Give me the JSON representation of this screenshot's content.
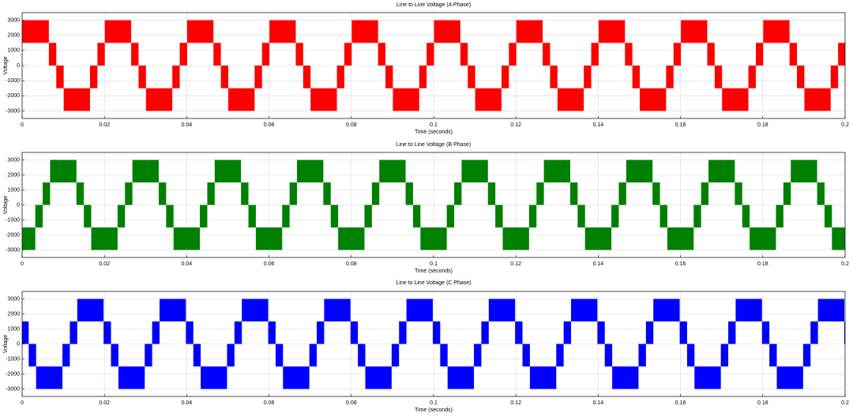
{
  "chart_data": [
    {
      "type": "band",
      "title": "Line to Line Voltage (A Phase)",
      "xlabel": "Time (seconds)",
      "ylabel": "Voltage",
      "xlim": [
        0,
        0.2
      ],
      "xticks": [
        0,
        0.02,
        0.04,
        0.06,
        0.08,
        0.1,
        0.12,
        0.14,
        0.16,
        0.18,
        0.2
      ],
      "ylim": [
        -3500,
        3500
      ],
      "yticks": [
        -3000,
        -2000,
        -1000,
        0,
        1000,
        2000,
        3000
      ],
      "grid": true,
      "color": "#ff0000",
      "edges": [
        0,
        0.0065,
        0.0083,
        0.0101,
        0.0165,
        0.0183,
        0.0201,
        0.0265,
        0.0283,
        0.0301,
        0.0365,
        0.0383,
        0.0401,
        0.0465,
        0.0483,
        0.0501,
        0.0565,
        0.0583,
        0.0601,
        0.0665,
        0.0683,
        0.0701,
        0.0765,
        0.0783,
        0.0801,
        0.0865,
        0.0883,
        0.0901,
        0.0965,
        0.0983,
        0.1001,
        0.1065,
        0.1083,
        0.1101,
        0.1165,
        0.1183,
        0.1201,
        0.1265,
        0.1283,
        0.1301,
        0.1365,
        0.1383,
        0.1401,
        0.1465,
        0.1483,
        0.1501,
        0.1565,
        0.1583,
        0.1601,
        0.1665,
        0.1683,
        0.1701,
        0.1765,
        0.1783,
        0.1801,
        0.1865,
        0.1883,
        0.1901,
        0.1965,
        0.1983,
        0.2
      ],
      "low": [
        1500,
        0,
        -1500,
        -3000,
        -1500,
        0,
        1500,
        0,
        -1500,
        -3000,
        -1500,
        0,
        1500,
        0,
        -1500,
        -3000,
        -1500,
        0,
        1500,
        0,
        -1500,
        -3000,
        -1500,
        0,
        1500,
        0,
        -1500,
        -3000,
        -1500,
        0,
        1500,
        0,
        -1500,
        -3000,
        -1500,
        0,
        1500,
        0,
        -1500,
        -3000,
        -1500,
        0,
        1500,
        0,
        -1500,
        -3000,
        -1500,
        0,
        1500,
        0,
        -1500,
        -3000,
        -1500,
        0,
        1500,
        0,
        -1500,
        -3000,
        -1500,
        0
      ],
      "high": [
        3000,
        1500,
        0,
        -1500,
        0,
        1500,
        3000,
        1500,
        0,
        -1500,
        0,
        1500,
        3000,
        1500,
        0,
        -1500,
        0,
        1500,
        3000,
        1500,
        0,
        -1500,
        0,
        1500,
        3000,
        1500,
        0,
        -1500,
        0,
        1500,
        3000,
        1500,
        0,
        -1500,
        0,
        1500,
        3000,
        1500,
        0,
        -1500,
        0,
        1500,
        3000,
        1500,
        0,
        -1500,
        0,
        1500,
        3000,
        1500,
        0,
        -1500,
        0,
        1500,
        3000,
        1500,
        0,
        -1500,
        0,
        1500
      ]
    },
    {
      "type": "band",
      "title": "Line to Line Voltage (B Phase)",
      "xlabel": "Time (seconds)",
      "ylabel": "Voltage",
      "xlim": [
        0,
        0.2
      ],
      "xticks": [
        0,
        0.02,
        0.04,
        0.06,
        0.08,
        0.1,
        0.12,
        0.14,
        0.16,
        0.18,
        0.2
      ],
      "ylim": [
        -3500,
        3500
      ],
      "yticks": [
        -3000,
        -2000,
        -1000,
        0,
        1000,
        2000,
        3000
      ],
      "grid": true,
      "color": "#008000",
      "edges": [
        0,
        0.0032,
        0.005,
        0.0068,
        0.0132,
        0.015,
        0.0168,
        0.0232,
        0.025,
        0.0268,
        0.0332,
        0.035,
        0.0368,
        0.0432,
        0.045,
        0.0468,
        0.0532,
        0.055,
        0.0568,
        0.0632,
        0.065,
        0.0668,
        0.0732,
        0.075,
        0.0768,
        0.0832,
        0.085,
        0.0868,
        0.0932,
        0.095,
        0.0968,
        0.1032,
        0.105,
        0.1068,
        0.1132,
        0.115,
        0.1168,
        0.1232,
        0.125,
        0.1268,
        0.1332,
        0.135,
        0.1368,
        0.1432,
        0.145,
        0.1468,
        0.1532,
        0.155,
        0.1568,
        0.1632,
        0.165,
        0.1668,
        0.1732,
        0.175,
        0.1768,
        0.1832,
        0.185,
        0.1868,
        0.1932,
        0.195,
        0.1968,
        0.2
      ],
      "low": [
        -3000,
        -1500,
        0,
        1500,
        0,
        -1500,
        -3000,
        -1500,
        0,
        1500,
        0,
        -1500,
        -3000,
        -1500,
        0,
        1500,
        0,
        -1500,
        -3000,
        -1500,
        0,
        1500,
        0,
        -1500,
        -3000,
        -1500,
        0,
        1500,
        0,
        -1500,
        -3000,
        -1500,
        0,
        1500,
        0,
        -1500,
        -3000,
        -1500,
        0,
        1500,
        0,
        -1500,
        -3000,
        -1500,
        0,
        1500,
        0,
        -1500,
        -3000,
        -1500,
        0,
        1500,
        0,
        -1500,
        -3000,
        -1500,
        0,
        1500,
        0,
        -1500,
        -3000
      ],
      "high": [
        -1500,
        0,
        1500,
        3000,
        1500,
        0,
        -1500,
        0,
        1500,
        3000,
        1500,
        0,
        -1500,
        0,
        1500,
        3000,
        1500,
        0,
        -1500,
        0,
        1500,
        3000,
        1500,
        0,
        -1500,
        0,
        1500,
        3000,
        1500,
        0,
        -1500,
        0,
        1500,
        3000,
        1500,
        0,
        -1500,
        0,
        1500,
        3000,
        1500,
        0,
        -1500,
        0,
        1500,
        3000,
        1500,
        0,
        -1500,
        0,
        1500,
        3000,
        1500,
        0,
        -1500,
        0,
        1500,
        3000,
        1500,
        0,
        -1500
      ]
    },
    {
      "type": "band",
      "title": "Line to Line Voltage (C Phase)",
      "xlabel": "Time (seconds)",
      "ylabel": "Voltage",
      "xlim": [
        0,
        0.2
      ],
      "xticks": [
        0,
        0.02,
        0.04,
        0.06,
        0.08,
        0.1,
        0.12,
        0.14,
        0.16,
        0.18,
        0.2
      ],
      "ylim": [
        -3500,
        3500
      ],
      "yticks": [
        -3000,
        -2000,
        -1000,
        0,
        1000,
        2000,
        3000
      ],
      "grid": true,
      "color": "#0000ff",
      "edges": [
        0,
        0.0016,
        0.0034,
        0.0098,
        0.0116,
        0.0134,
        0.0198,
        0.0216,
        0.0234,
        0.0298,
        0.0316,
        0.0334,
        0.0398,
        0.0416,
        0.0434,
        0.0498,
        0.0516,
        0.0534,
        0.0598,
        0.0616,
        0.0634,
        0.0698,
        0.0716,
        0.0734,
        0.0798,
        0.0816,
        0.0834,
        0.0898,
        0.0916,
        0.0934,
        0.0998,
        0.1016,
        0.1034,
        0.1098,
        0.1116,
        0.1134,
        0.1198,
        0.1216,
        0.1234,
        0.1298,
        0.1316,
        0.1334,
        0.1398,
        0.1416,
        0.1434,
        0.1498,
        0.1516,
        0.1534,
        0.1598,
        0.1616,
        0.1634,
        0.1698,
        0.1716,
        0.1734,
        0.1798,
        0.1816,
        0.1834,
        0.1898,
        0.1916,
        0.1934,
        0.1998,
        0.2
      ],
      "low": [
        0,
        -1500,
        -3000,
        -1500,
        0,
        1500,
        0,
        -1500,
        -3000,
        -1500,
        0,
        1500,
        0,
        -1500,
        -3000,
        -1500,
        0,
        1500,
        0,
        -1500,
        -3000,
        -1500,
        0,
        1500,
        0,
        -1500,
        -3000,
        -1500,
        0,
        1500,
        0,
        -1500,
        -3000,
        -1500,
        0,
        1500,
        0,
        -1500,
        -3000,
        -1500,
        0,
        1500,
        0,
        -1500,
        -3000,
        -1500,
        0,
        1500,
        0,
        -1500,
        -3000,
        -1500,
        0,
        1500,
        0,
        -1500,
        -3000,
        -1500,
        0,
        1500,
        0
      ],
      "high": [
        1500,
        0,
        -1500,
        0,
        1500,
        3000,
        1500,
        0,
        -1500,
        0,
        1500,
        3000,
        1500,
        0,
        -1500,
        0,
        1500,
        3000,
        1500,
        0,
        -1500,
        0,
        1500,
        3000,
        1500,
        0,
        -1500,
        0,
        1500,
        3000,
        1500,
        0,
        -1500,
        0,
        1500,
        3000,
        1500,
        0,
        -1500,
        0,
        1500,
        3000,
        1500,
        0,
        -1500,
        0,
        1500,
        3000,
        1500,
        0,
        -1500,
        0,
        1500,
        3000,
        1500,
        0,
        -1500,
        0,
        1500,
        3000,
        1500
      ]
    }
  ]
}
